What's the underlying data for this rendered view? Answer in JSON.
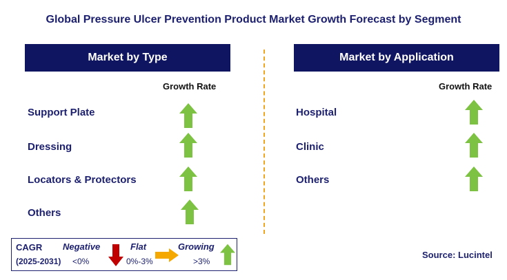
{
  "title": "Global Pressure Ulcer Prevention Product Market Growth Forecast by Segment",
  "type_panel": {
    "header": "Market by Type",
    "column_label": "Growth Rate",
    "rows": [
      {
        "label": "Support Plate",
        "trend": "growing"
      },
      {
        "label": "Dressing",
        "trend": "growing"
      },
      {
        "label": "Locators & Protectors",
        "trend": "growing"
      },
      {
        "label": "Others",
        "trend": "growing"
      }
    ]
  },
  "application_panel": {
    "header": "Market by Application",
    "column_label": "Growth Rate",
    "rows": [
      {
        "label": "Hospital",
        "trend": "growing"
      },
      {
        "label": "Clinic",
        "trend": "growing"
      },
      {
        "label": "Others",
        "trend": "growing"
      }
    ]
  },
  "legend": {
    "cagr_label": "CAGR",
    "period": "(2025-2031)",
    "negative_label": "Negative",
    "negative_range": "<0%",
    "flat_label": "Flat",
    "flat_range": "0%-3%",
    "growing_label": "Growing",
    "growing_range": ">3%"
  },
  "source": "Source: Lucintel",
  "colors": {
    "header_bg": "#0f1560",
    "text_navy": "#1b1f6e",
    "growing_green": "#7dc242",
    "negative_red": "#c00000",
    "flat_orange": "#f5a800",
    "divider": "#f0a31c"
  },
  "icons": {
    "growing": "arrow-up-icon",
    "negative": "arrow-down-icon",
    "flat": "arrow-right-icon"
  }
}
